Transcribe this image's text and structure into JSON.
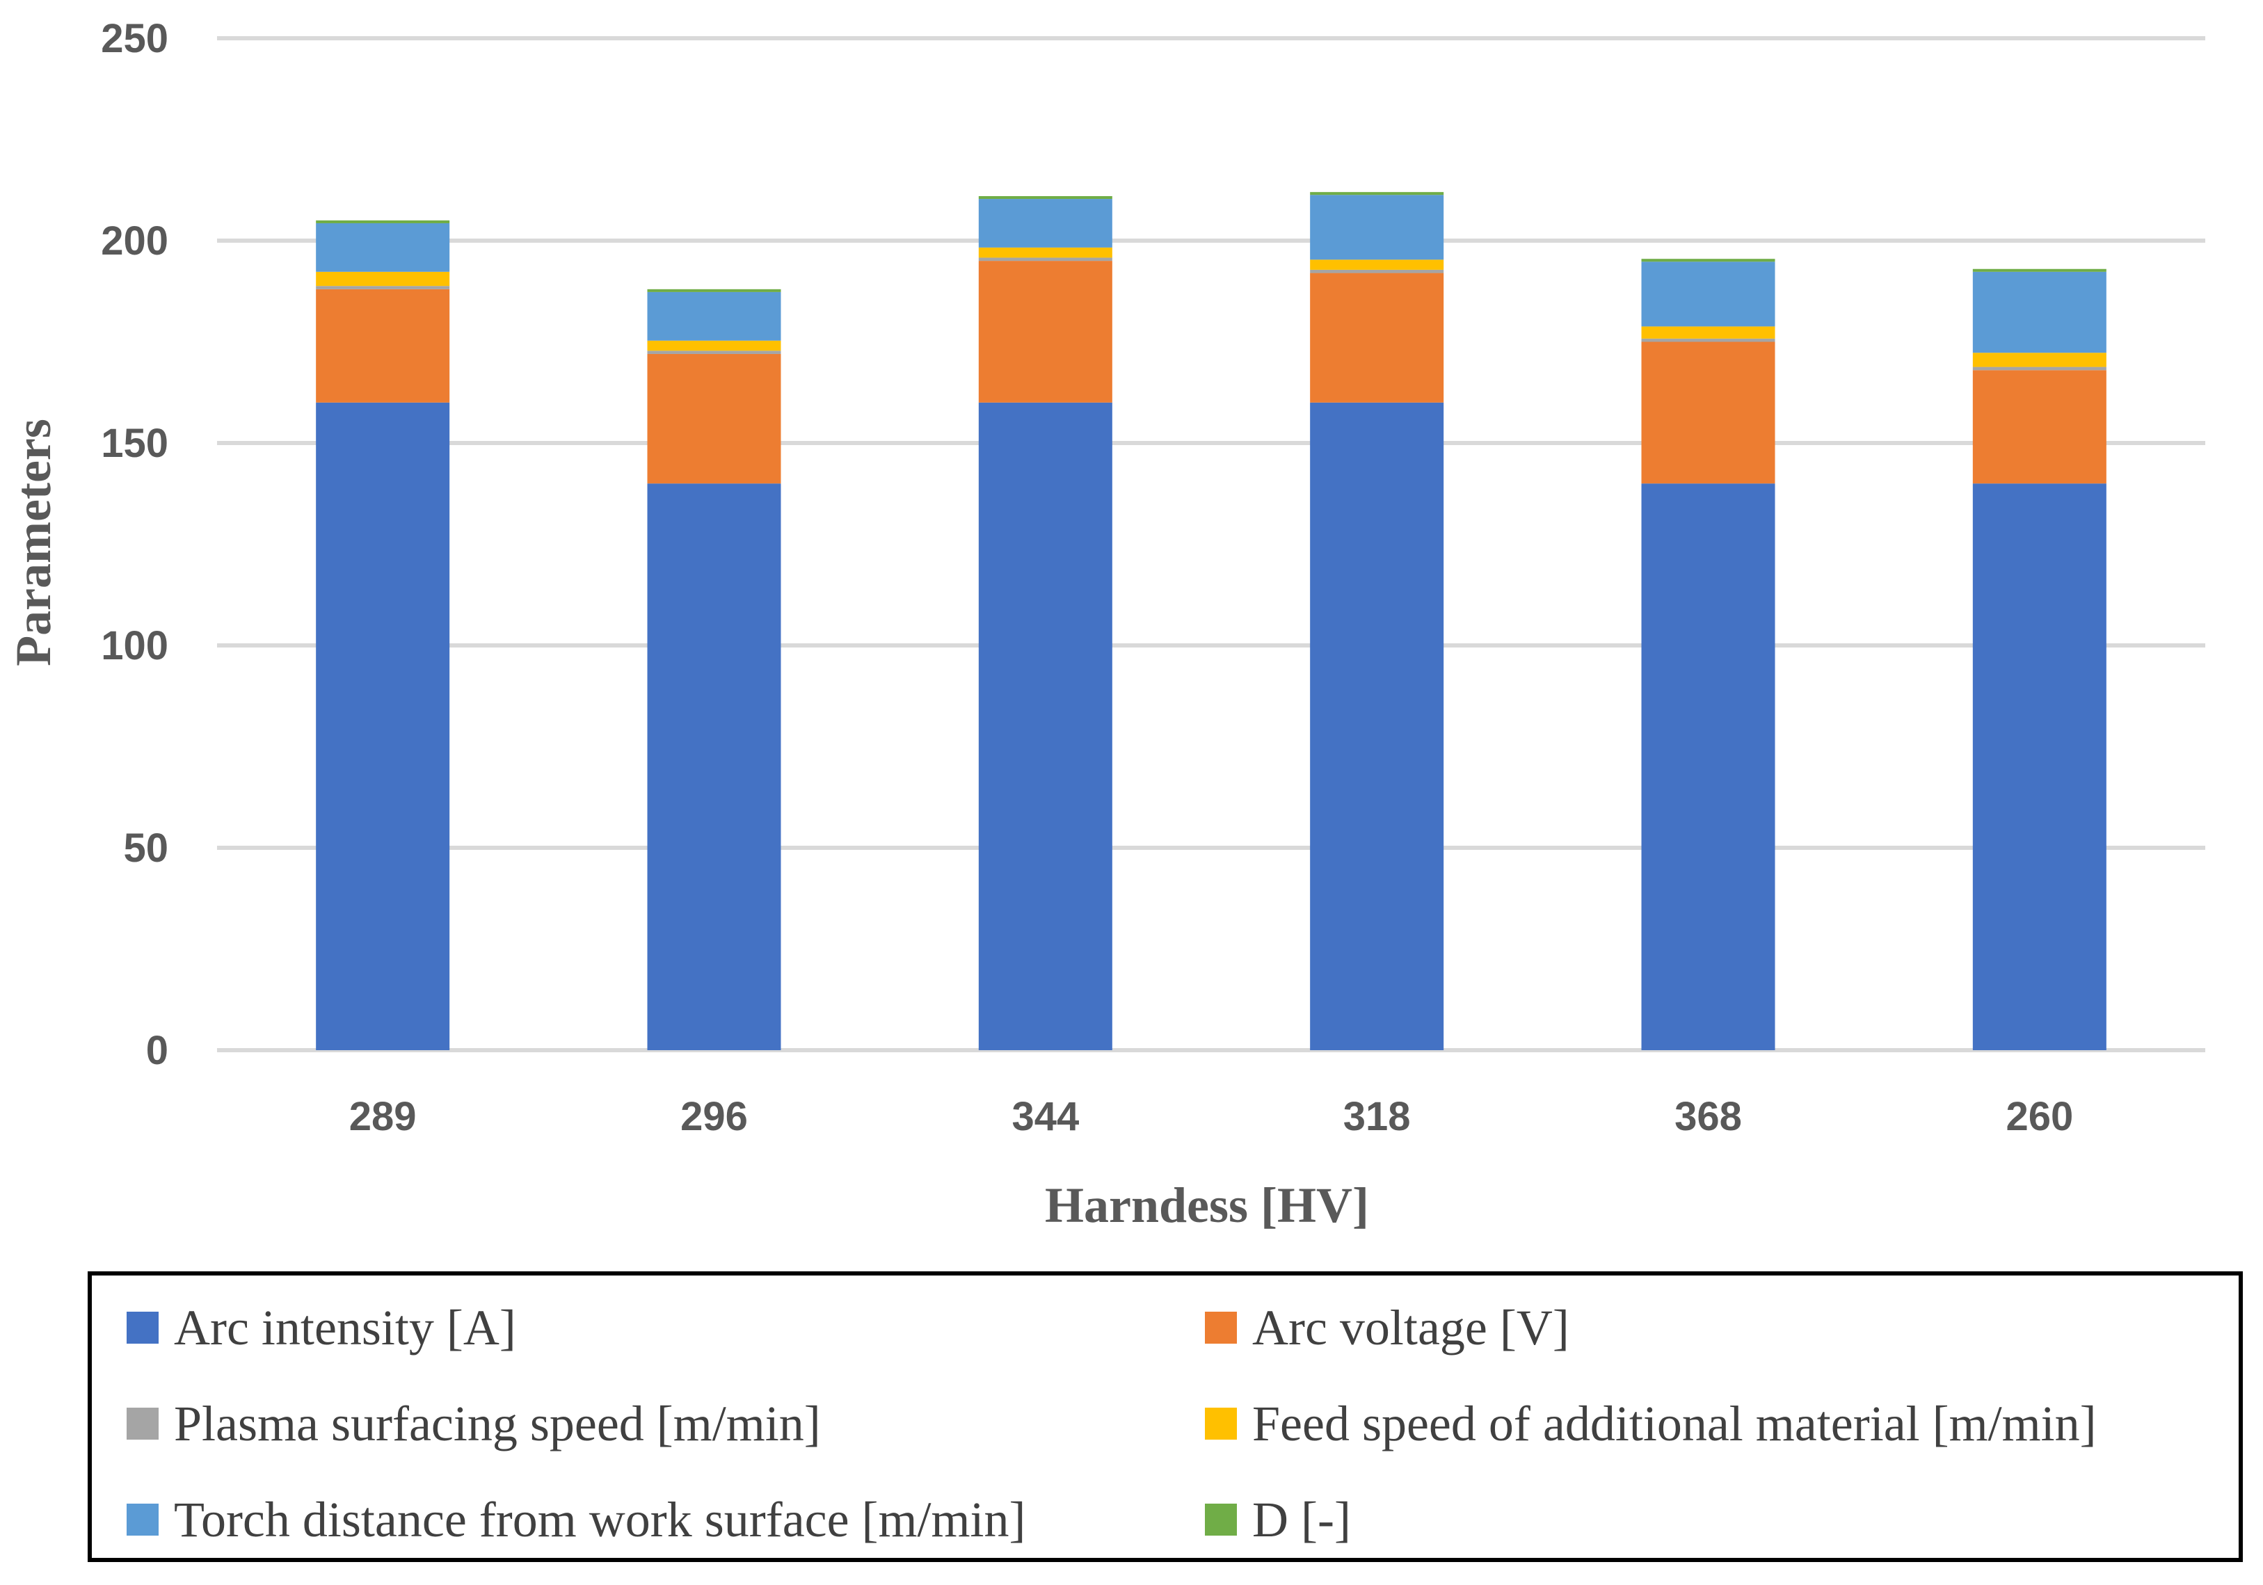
{
  "chart_data": {
    "type": "bar",
    "stacked": true,
    "title": "",
    "xlabel": "Harndess [HV]",
    "ylabel": "Parameters",
    "ylim": [
      0,
      250
    ],
    "yticks": [
      0,
      50,
      100,
      150,
      200,
      250
    ],
    "grid": true,
    "legend_position": "bottom",
    "categories": [
      "289",
      "296",
      "344",
      "318",
      "368",
      "260"
    ],
    "series": [
      {
        "name": "Arc intensity [A]",
        "color": "#4472C4",
        "values": [
          160,
          140,
          160,
          160,
          140,
          140
        ]
      },
      {
        "name": "Arc voltage [V]",
        "color": "#ED7D31",
        "values": [
          28,
          32,
          35,
          32,
          35,
          28
        ]
      },
      {
        "name": "Plasma surfacing speed [m/min]",
        "color": "#A5A5A5",
        "values": [
          0.8,
          0.8,
          0.8,
          0.8,
          0.8,
          0.8
        ]
      },
      {
        "name": "Feed speed of additional material [m/min]",
        "color": "#FFC000",
        "values": [
          3.5,
          2.5,
          2.5,
          2.5,
          3.0,
          3.5
        ]
      },
      {
        "name": "Torch distance from work surface [m/min]",
        "color": "#5B9BD5",
        "values": [
          12,
          12,
          12,
          16,
          16,
          20
        ]
      },
      {
        "name": "D [-]",
        "color": "#70AD47",
        "values": [
          0.7,
          0.7,
          0.7,
          0.7,
          0.7,
          0.7
        ]
      }
    ]
  }
}
